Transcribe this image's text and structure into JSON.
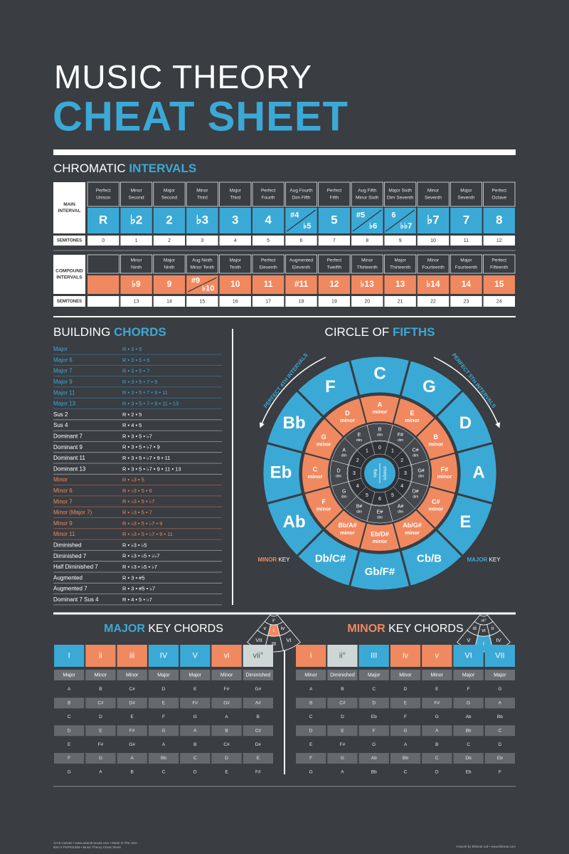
{
  "header": {
    "title": "MUSIC THEORY",
    "subtitle": "CHEAT SHEET"
  },
  "intervals": {
    "heading": [
      "CHROMATIC ",
      "INTERVALS"
    ],
    "main_label": [
      "MAIN",
      "INTERVAL"
    ],
    "names": [
      [
        "Perfect",
        "Unison"
      ],
      [
        "Minor",
        "Second"
      ],
      [
        "Major",
        "Second"
      ],
      [
        "Minor",
        "Third"
      ],
      [
        "Major",
        "Third"
      ],
      [
        "Perfect",
        "Fourth"
      ],
      [
        "Aug Fourth",
        "Dim Fifth"
      ],
      [
        "Perfect",
        "Fifth"
      ],
      [
        "Aug Fifth",
        "Minor Sixth"
      ],
      [
        "Major Sixth",
        "Dim Seventh"
      ],
      [
        "Minor",
        "Seventh"
      ],
      [
        "Major",
        "Seventh"
      ],
      [
        "Perfect",
        "Octave"
      ]
    ],
    "symbols": [
      "R",
      "♭2",
      "2",
      "♭3",
      "3",
      "4",
      [
        "#4",
        "♭5"
      ],
      "5",
      [
        "#5",
        "♭6"
      ],
      [
        "6",
        "♭♭7"
      ],
      "♭7",
      "7",
      "8"
    ],
    "semitones_label": "SEMITONES",
    "semitones": [
      0,
      1,
      2,
      3,
      4,
      5,
      6,
      7,
      8,
      9,
      10,
      11,
      12
    ]
  },
  "compound": {
    "label": [
      "COMPOUND",
      "INTERVALS"
    ],
    "names": [
      null,
      [
        "Minor",
        "Ninth"
      ],
      [
        "Major",
        "Ninth"
      ],
      [
        "Aug Ninth",
        "Minor Tenth"
      ],
      [
        "Major",
        "Tenth"
      ],
      [
        "Perfect",
        "Eleventh"
      ],
      [
        "Augmented",
        "Eleventh"
      ],
      [
        "Perfect",
        "Twelfth"
      ],
      [
        "Minor",
        "Thirteenth"
      ],
      [
        "Major",
        "Thirteenth"
      ],
      [
        "Minor",
        "Fourteenth"
      ],
      [
        "Major",
        "Fourteenth"
      ],
      [
        "Perfect",
        "Fifteenth"
      ]
    ],
    "symbols": [
      null,
      "♭9",
      "9",
      [
        "#9",
        "♭10"
      ],
      "10",
      "11",
      "#11",
      "12",
      "♭13",
      "13",
      "♭14",
      "14",
      "15"
    ],
    "semitones_label": "SEMITONES",
    "semitones": [
      null,
      13,
      14,
      15,
      16,
      17,
      18,
      19,
      20,
      21,
      22,
      23,
      24
    ]
  },
  "chords": {
    "heading": [
      "BUILDING ",
      "CHORDS"
    ],
    "rows": [
      {
        "name": "Major",
        "formula": "R • 3 • 5",
        "color": "#3ba9d6"
      },
      {
        "name": "Major 6",
        "formula": "R • 3 • 5 • 6",
        "color": "#3ba9d6"
      },
      {
        "name": "Major 7",
        "formula": "R • 3 • 5 • 7",
        "color": "#3ba9d6"
      },
      {
        "name": "Major 9",
        "formula": "R • 3 • 5 • 7 • 9",
        "color": "#3ba9d6"
      },
      {
        "name": "Major 11",
        "formula": "R • 3 • 5 • 7 • 9 • 11",
        "color": "#3ba9d6"
      },
      {
        "name": "Major 13",
        "formula": "R • 3 • 5 • 7 • 9 • 11 • 13",
        "color": "#3ba9d6"
      },
      {
        "name": "Sus 2",
        "formula": "R • 2 • 5",
        "color": "#ffffff"
      },
      {
        "name": "Sus 4",
        "formula": "R • 4 • 5",
        "color": "#ffffff"
      },
      {
        "name": "Dominant 7",
        "formula": "R • 3 • 5 • ♭7",
        "color": "#ffffff"
      },
      {
        "name": "Dominant 9",
        "formula": "R • 3 • 5 • ♭7 • 9",
        "color": "#ffffff"
      },
      {
        "name": "Dominant 11",
        "formula": "R • 3 • 5 • ♭7 • 9 • 11",
        "color": "#ffffff"
      },
      {
        "name": "Dominant 13",
        "formula": "R • 3 • 5 • ♭7 • 9 • 11 • 13",
        "color": "#ffffff"
      },
      {
        "name": "Minor",
        "formula": "R • ♭3 • 5",
        "color": "#f0895f"
      },
      {
        "name": "Minor 6",
        "formula": "R • ♭3 • 5 • 6",
        "color": "#f0895f"
      },
      {
        "name": "Minor 7",
        "formula": "R • ♭3 • 5 • ♭7",
        "color": "#f0895f"
      },
      {
        "name": "Minor (Major 7)",
        "formula": "R • ♭3 • 5 • 7",
        "color": "#f0895f"
      },
      {
        "name": "Minor 9",
        "formula": "R • ♭3 • 5 • ♭7 • 9",
        "color": "#f0895f"
      },
      {
        "name": "Minor 11",
        "formula": "R • ♭3 • 5 • ♭7 • 9 • 11",
        "color": "#f0895f"
      },
      {
        "name": "Diminished",
        "formula": "R • ♭3 • ♭5",
        "color": "#ffffff"
      },
      {
        "name": "Diminished 7",
        "formula": "R • ♭3 • ♭5 • ♭♭7",
        "color": "#ffffff"
      },
      {
        "name": "Half Diminished 7",
        "formula": "R • ♭3 • ♭5 • ♭7",
        "color": "#ffffff"
      },
      {
        "name": "Augmented",
        "formula": "R • 3 • #5",
        "color": "#ffffff"
      },
      {
        "name": "Augmented 7",
        "formula": "R • 3 • #5 • ♭7",
        "color": "#ffffff"
      },
      {
        "name": "Dominant 7 Sus 4",
        "formula": "R • 4 • 5 • ♭7",
        "color": "#ffffff"
      }
    ]
  },
  "circle": {
    "heading": [
      "CIRCLE OF ",
      "FIFTHS"
    ],
    "left_label": "PERFECT 4TH INTERVALS",
    "right_label": "PERFECT 5TH INTERVALS",
    "flats_label": "flats",
    "sharps_label": "sharps",
    "segments": [
      {
        "major": "C",
        "minor": [
          "A",
          "minor"
        ],
        "dim": [
          "B",
          "dim"
        ],
        "count": 0
      },
      {
        "major": "G",
        "minor": [
          "E",
          "minor"
        ],
        "dim": [
          "F#",
          "dim"
        ],
        "count": 1
      },
      {
        "major": "D",
        "minor": [
          "B",
          "minor"
        ],
        "dim": [
          "C#",
          "dim"
        ],
        "count": 2
      },
      {
        "major": "A",
        "minor": [
          "F#",
          "minor"
        ],
        "dim": [
          "G#",
          "dim"
        ],
        "count": 3
      },
      {
        "major": "E",
        "minor": [
          "C#",
          "minor"
        ],
        "dim": [
          "D#",
          "dim"
        ],
        "count": 4
      },
      {
        "major": "Cb/B",
        "minor": [
          "Ab/G#",
          "minor"
        ],
        "dim": [
          "A#",
          "dim"
        ],
        "count": 5
      },
      {
        "major": "Gb/F#",
        "minor": [
          "Eb/D#",
          "minor"
        ],
        "dim": [
          "E#",
          "dim"
        ],
        "count": 6
      },
      {
        "major": "Db/C#",
        "minor": [
          "Bb/A#",
          "minor"
        ],
        "dim": [
          "B#",
          "dim"
        ],
        "count": 5
      },
      {
        "major": "Ab",
        "minor": [
          "F",
          "minor"
        ],
        "dim": [
          "G",
          "dim"
        ],
        "count": 4
      },
      {
        "major": "Eb",
        "minor": [
          "C",
          "minor"
        ],
        "dim": [
          "D",
          "dim"
        ],
        "count": 3
      },
      {
        "major": "Bb",
        "minor": [
          "G",
          "minor"
        ],
        "dim": [
          "A",
          "dim"
        ],
        "count": 2
      },
      {
        "major": "F",
        "minor": [
          "D",
          "minor"
        ],
        "dim": [
          "E",
          "dim"
        ],
        "count": 1
      }
    ],
    "minor_key": {
      "label": [
        "MINOR",
        " KEY"
      ],
      "rings": [
        [
          "VI",
          "III",
          "VII"
        ],
        [
          "iv",
          "i",
          "v"
        ],
        [
          "ii°"
        ]
      ]
    },
    "major_key": {
      "label": [
        "MAJOR",
        " KEY"
      ],
      "rings": [
        [
          "IV",
          "I",
          "V"
        ],
        [
          "ii",
          "vi",
          "iii"
        ],
        [
          "vii°"
        ]
      ]
    }
  },
  "major_chords": {
    "heading": [
      "MAJOR",
      " KEY CHORDS"
    ],
    "numerals": [
      "I",
      "ii",
      "iii",
      "IV",
      "V",
      "vi",
      "vii°"
    ],
    "qualities": [
      "Major",
      "Minor",
      "Minor",
      "Major",
      "Major",
      "Minor",
      "Diminished"
    ],
    "rows": [
      [
        "A",
        "B",
        "C#",
        "D",
        "E",
        "F#",
        "G#"
      ],
      [
        "B",
        "C#",
        "D#",
        "E",
        "F#",
        "G#",
        "A#"
      ],
      [
        "C",
        "D",
        "E",
        "F",
        "G",
        "A",
        "B"
      ],
      [
        "D",
        "E",
        "F#",
        "G",
        "A",
        "B",
        "C#"
      ],
      [
        "E",
        "F#",
        "G#",
        "A",
        "B",
        "C#",
        "D#"
      ],
      [
        "F",
        "G",
        "A",
        "Bb",
        "C",
        "D",
        "E"
      ],
      [
        "G",
        "A",
        "B",
        "C",
        "D",
        "E",
        "F#"
      ]
    ]
  },
  "minor_chords": {
    "heading": [
      "MINOR",
      " KEY CHORDS"
    ],
    "numerals": [
      "i",
      "ii°",
      "III",
      "iv",
      "v",
      "VI",
      "VII"
    ],
    "qualities": [
      "Minor",
      "Diminished",
      "Major",
      "Minor",
      "Minor",
      "Major",
      "Major"
    ],
    "rows": [
      [
        "A",
        "B",
        "C",
        "D",
        "E",
        "F",
        "G"
      ],
      [
        "B",
        "C#",
        "D",
        "E",
        "F#",
        "G",
        "A"
      ],
      [
        "C",
        "D",
        "Eb",
        "F",
        "G",
        "Ab",
        "Bb"
      ],
      [
        "D",
        "E",
        "F",
        "G",
        "A",
        "Bb",
        "C"
      ],
      [
        "E",
        "F#",
        "G",
        "A",
        "B",
        "C",
        "D"
      ],
      [
        "F",
        "G",
        "Ab",
        "Bb",
        "C",
        "Db",
        "Eb"
      ],
      [
        "G",
        "A",
        "Bb",
        "C",
        "D",
        "Eb",
        "F"
      ]
    ]
  },
  "footer": {
    "left": [
      "Art & Canvas • www.artandcanvas.com • Made In The USA",
      "Item # PSP011486 • Music Theory Cheat Sheet"
    ],
    "right": "Artwork by Bilinear Ltd • www.bilinear.com"
  }
}
